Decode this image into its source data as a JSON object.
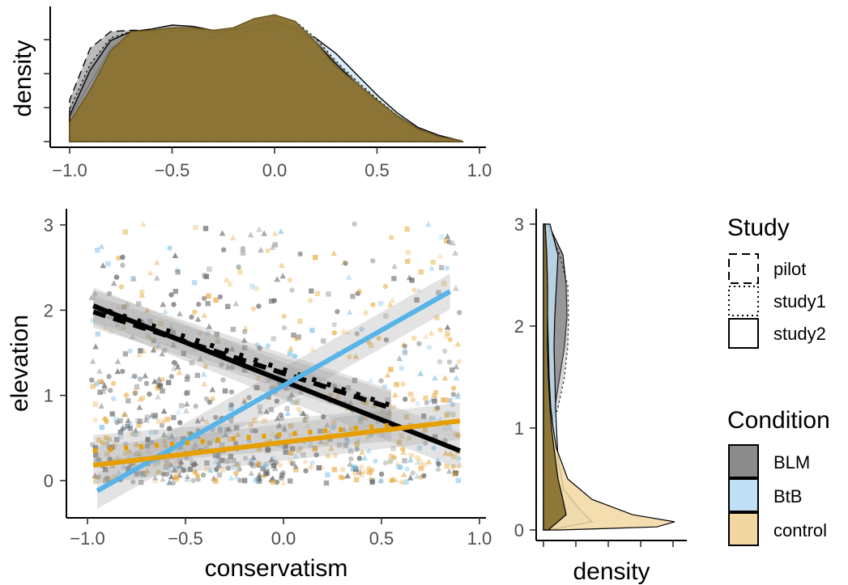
{
  "chart_data": [
    {
      "panel": "top-density",
      "type": "area",
      "xlabel": "",
      "ylabel": "density",
      "xlim": [
        -1.0,
        1.0
      ],
      "ylim": [
        0,
        1.0
      ],
      "x_ticks": [
        "−1.0",
        "−0.5",
        "0.0",
        "0.5",
        "1.0"
      ],
      "y_ticks_labeled": false,
      "grid": false,
      "x": [
        -1.0,
        -0.9,
        -0.8,
        -0.7,
        -0.6,
        -0.5,
        -0.4,
        -0.3,
        -0.2,
        -0.1,
        0.0,
        0.1,
        0.2,
        0.3,
        0.4,
        0.5,
        0.6,
        0.7,
        0.8,
        0.9,
        0.92
      ],
      "series": [
        {
          "condition": "BLM",
          "study": "pilot",
          "values": [
            0.32,
            0.72,
            0.85,
            0.86,
            0.86,
            0.87,
            0.87,
            0.85,
            0.84,
            0.85,
            0.85,
            0.78,
            0.68,
            0.55,
            0.43,
            0.3,
            0.18,
            0.09,
            0.04,
            0.01,
            0.0
          ]
        },
        {
          "condition": "BLM",
          "study": "study1",
          "values": [
            0.25,
            0.6,
            0.8,
            0.85,
            0.84,
            0.81,
            0.78,
            0.81,
            0.88,
            0.94,
            0.97,
            0.93,
            0.8,
            0.62,
            0.47,
            0.33,
            0.2,
            0.1,
            0.04,
            0.01,
            0.0
          ]
        },
        {
          "condition": "BLM",
          "study": "study2",
          "values": [
            0.2,
            0.55,
            0.78,
            0.85,
            0.87,
            0.9,
            0.89,
            0.86,
            0.86,
            0.9,
            0.93,
            0.88,
            0.77,
            0.6,
            0.45,
            0.32,
            0.19,
            0.09,
            0.04,
            0.01,
            0.0
          ]
        },
        {
          "condition": "BtB",
          "study": "study2",
          "values": [
            0.18,
            0.45,
            0.72,
            0.82,
            0.84,
            0.85,
            0.86,
            0.84,
            0.83,
            0.86,
            0.88,
            0.86,
            0.8,
            0.68,
            0.52,
            0.36,
            0.22,
            0.11,
            0.05,
            0.01,
            0.0
          ]
        },
        {
          "condition": "control",
          "study": "study2",
          "values": [
            0.15,
            0.4,
            0.7,
            0.85,
            0.86,
            0.88,
            0.88,
            0.86,
            0.88,
            0.95,
            0.98,
            0.93,
            0.77,
            0.58,
            0.45,
            0.32,
            0.2,
            0.1,
            0.04,
            0.01,
            0.0
          ]
        }
      ]
    },
    {
      "panel": "main-scatter",
      "type": "scatter",
      "xlabel": "conservatism",
      "ylabel": "elevation",
      "xlim": [
        -1.05,
        1.0
      ],
      "ylim": [
        -0.05,
        3.0
      ],
      "x_ticks": [
        "−1.0",
        "−0.5",
        "0.0",
        "0.5",
        "1.0"
      ],
      "y_ticks": [
        "0",
        "1",
        "2",
        "3"
      ],
      "grid": false,
      "points": "jittered scatter of responses (elevation 0–3 vs conservatism −1 to 0.9) by condition and study",
      "fit_lines": [
        {
          "condition": "BLM",
          "study": "pilot",
          "x": [
            -0.97,
            0.55
          ],
          "y": [
            1.98,
            0.85
          ]
        },
        {
          "condition": "BLM",
          "study": "study1",
          "x": [
            -0.97,
            0.55
          ],
          "y": [
            2.05,
            0.88
          ]
        },
        {
          "condition": "BLM",
          "study": "study2",
          "x": [
            -0.97,
            0.9
          ],
          "y": [
            2.05,
            0.35
          ]
        },
        {
          "condition": "BtB",
          "study": "study2",
          "x": [
            -0.95,
            0.85
          ],
          "y": [
            -0.12,
            2.22
          ]
        },
        {
          "condition": "control",
          "study": "study1",
          "x": [
            -0.97,
            0.55
          ],
          "y": [
            0.35,
            0.65
          ]
        },
        {
          "condition": "control",
          "study": "study2",
          "x": [
            -0.97,
            0.9
          ],
          "y": [
            0.18,
            0.7
          ]
        }
      ]
    },
    {
      "panel": "right-density",
      "type": "area",
      "xlabel": "density",
      "ylabel": "",
      "ylim": [
        -0.05,
        3.0
      ],
      "y_ticks": [
        "0",
        "1",
        "2",
        "3"
      ],
      "x_ticks_labeled": false,
      "grid": false
    }
  ],
  "legend": {
    "study": {
      "title": "Study",
      "items": [
        "pilot",
        "study1",
        "study2"
      ]
    },
    "condition": {
      "title": "Condition",
      "items": [
        "BLM",
        "BtB",
        "control"
      ]
    }
  },
  "colors": {
    "BLM": "#4d4d4d",
    "BtB": "#56b4e9",
    "control": "#e69f00",
    "BLM_fill": "#8c8c8c",
    "BtB_fill": "#bfe0f5",
    "control_fill": "#f2d7a0",
    "overlap_fill": "#8a7230"
  }
}
